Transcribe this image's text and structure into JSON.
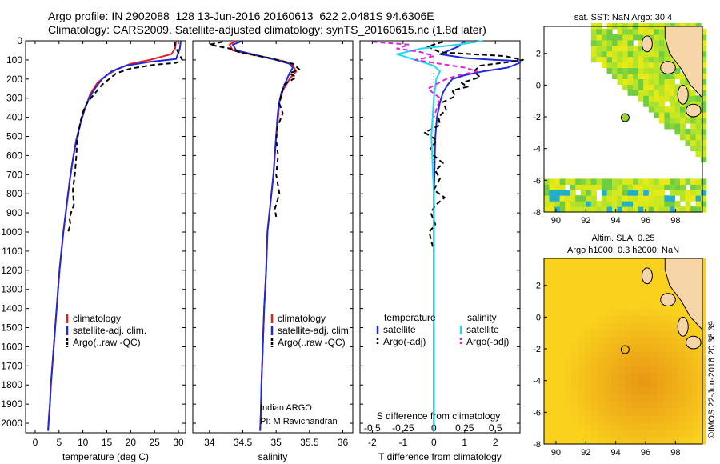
{
  "header": {
    "line1": "Argo profile: IN 2902088_128 13-Jun-2016 20160613_622 2.0481S 94.6306E",
    "line2": "Climatology: CARS2009. Satellite-adjusted climatology: synTS_20160615.nc (1.8d later)"
  },
  "footer": {
    "credit": "©IMOS 22-Jun-2016 20:38:39"
  },
  "colors": {
    "climatology": "#e8201c",
    "satellite": "#1f2ad8",
    "argo": "#000000",
    "sat_diff": "#22d8f0",
    "argo_s_diff": "#e020e0"
  },
  "chart_data": [
    {
      "type": "line",
      "name": "temperature",
      "xlabel": "temperature (deg C)",
      "ylabel": "",
      "xlim": [
        -2,
        31.5
      ],
      "ylim": [
        2050,
        0
      ],
      "xticks": [
        "0",
        "5",
        "10",
        "15",
        "20",
        "25",
        "30"
      ],
      "xtick_values": [
        0,
        5,
        10,
        15,
        20,
        25,
        30
      ],
      "yticks": [
        "0",
        "100",
        "200",
        "300",
        "400",
        "500",
        "600",
        "700",
        "800",
        "900",
        "1000",
        "1100",
        "1200",
        "1300",
        "1400",
        "1500",
        "1600",
        "1700",
        "1800",
        "1900",
        "2000"
      ],
      "ytick_values": [
        0,
        100,
        200,
        300,
        400,
        500,
        600,
        700,
        800,
        900,
        1000,
        1100,
        1200,
        1300,
        1400,
        1500,
        1600,
        1700,
        1800,
        1900,
        2000
      ],
      "legend": [
        "climatology",
        "satellite-adj. clim.",
        "Argo(..raw -QC)"
      ],
      "series": [
        {
          "name": "climatology",
          "x": [
            29.5,
            29.3,
            28.5,
            24,
            20,
            17,
            15,
            13,
            11.5,
            10.5,
            9.5,
            8.6,
            7.9,
            7.3,
            6.8,
            6.3,
            5.9,
            5.5,
            5.1,
            4.8,
            4.5,
            4.2,
            3.9,
            3.6,
            3.3,
            3.1,
            2.9,
            2.8,
            2.7
          ],
          "y": [
            0,
            40,
            70,
            100,
            120,
            150,
            180,
            220,
            280,
            350,
            430,
            520,
            620,
            720,
            820,
            920,
            1000,
            1100,
            1200,
            1300,
            1400,
            1500,
            1600,
            1700,
            1800,
            1900,
            1960,
            2000,
            2040
          ]
        },
        {
          "name": "satellite-adj. clim.",
          "x": [
            30.5,
            30.3,
            29.5,
            24,
            19,
            16,
            14,
            12.5,
            11.3,
            10.3,
            9.5,
            8.6,
            7.9,
            7.3,
            6.8,
            6.3,
            5.9,
            5.5,
            5.1,
            4.8,
            4.5,
            4.2,
            3.9,
            3.6,
            3.3,
            3.1,
            2.9,
            2.8,
            2.7
          ],
          "y": [
            0,
            40,
            95,
            110,
            130,
            160,
            200,
            250,
            300,
            360,
            430,
            520,
            620,
            720,
            820,
            920,
            1000,
            1100,
            1200,
            1300,
            1400,
            1500,
            1600,
            1700,
            1800,
            1900,
            1960,
            2000,
            2040
          ]
        },
        {
          "name": "Argo(..raw -QC)",
          "x": [
            29.2,
            29.3,
            30.8,
            29.5,
            25,
            20,
            17,
            15.5,
            14,
            13,
            12,
            11,
            10.2,
            9.5,
            8.8,
            8.6,
            8.3,
            7.9,
            8.1,
            7.5,
            7.2,
            7.4,
            6.9
          ],
          "y": [
            5,
            30,
            100,
            115,
            125,
            145,
            170,
            200,
            230,
            260,
            290,
            320,
            360,
            420,
            520,
            610,
            700,
            780,
            860,
            900,
            930,
            960,
            1000
          ]
        }
      ]
    },
    {
      "type": "line",
      "name": "salinity",
      "xlabel": "salinity",
      "ylabel": "",
      "xlim": [
        33.75,
        36.15
      ],
      "ylim": [
        2050,
        0
      ],
      "xticks": [
        "34",
        "34.5",
        "35",
        "35.5",
        "36"
      ],
      "xtick_values": [
        34,
        34.5,
        35,
        35.5,
        36
      ],
      "legend": [
        "climatology",
        "satellite-adj. clim.",
        "Argo(..raw -QC)"
      ],
      "annotation": [
        "Indian ARGO",
        "PI: M Ravichandran"
      ],
      "series": [
        {
          "name": "climatology",
          "x": [
            34.4,
            34.3,
            34.35,
            34.6,
            34.9,
            35.15,
            35.25,
            35.3,
            35.2,
            35.1,
            35.05,
            35.03,
            35.0,
            34.98,
            34.96,
            34.93,
            34.9,
            34.87,
            34.85,
            34.82,
            34.8,
            34.78,
            34.77,
            34.76
          ],
          "y": [
            0,
            20,
            50,
            70,
            90,
            110,
            130,
            160,
            200,
            260,
            320,
            400,
            500,
            600,
            700,
            800,
            900,
            1000,
            1200,
            1400,
            1600,
            1800,
            1950,
            2040
          ]
        },
        {
          "name": "satellite-adj. clim.",
          "x": [
            34.5,
            34.35,
            34.4,
            34.7,
            35.0,
            35.2,
            35.25,
            35.2,
            35.15,
            35.08,
            35.04,
            35.02,
            35.0,
            34.98,
            34.96,
            34.93,
            34.9,
            34.87,
            34.85,
            34.82,
            34.8,
            34.78,
            34.77,
            34.76
          ],
          "y": [
            0,
            20,
            50,
            75,
            100,
            120,
            140,
            170,
            210,
            270,
            330,
            400,
            500,
            600,
            700,
            800,
            900,
            1000,
            1200,
            1400,
            1600,
            1800,
            1950,
            2040
          ]
        },
        {
          "name": "Argo(..raw -QC)",
          "x": [
            34.2,
            34.0,
            34.3,
            34.45,
            34.9,
            35.25,
            35.35,
            35.2,
            35.3,
            35.12,
            35.08,
            35.05,
            35.1,
            35.02,
            35.0,
            35.03,
            35.0,
            35.05,
            34.98,
            35.0
          ],
          "y": [
            5,
            20,
            40,
            60,
            90,
            120,
            150,
            170,
            190,
            230,
            280,
            330,
            380,
            450,
            520,
            600,
            700,
            800,
            880,
            920
          ]
        }
      ]
    },
    {
      "type": "line",
      "name": "differences",
      "xlabel": "T difference from climatology",
      "xlabel_top": "S difference from climatology",
      "xlim": [
        -2.4,
        2.8
      ],
      "ylim": [
        2050,
        0
      ],
      "xticks": [
        "-2",
        "-1",
        "0",
        "1",
        "2"
      ],
      "xtick_values": [
        -2,
        -1,
        0,
        1,
        2
      ],
      "xticks_s": [
        "-0.5",
        "-0.25",
        "0",
        "0.25",
        "0.5"
      ],
      "xtick_s_values": [
        -0.5,
        -0.25,
        0,
        0.25,
        0.5
      ],
      "s_scale": 4,
      "legend": [
        "temperature",
        "satellite",
        "Argo(-adj)",
        "salinity",
        "satellite",
        "Argo(-adj)"
      ],
      "series": [
        {
          "name": "T satellite",
          "x": [
            1.0,
            0.8,
            0.5,
            0.2,
            1.0,
            2.0,
            2.7,
            2.8,
            2.4,
            1.6,
            1.0,
            0.6,
            0.45,
            0.3,
            0.2,
            0.1,
            0.05,
            0.03,
            0.02,
            0.0,
            0.0,
            0.0,
            0.0,
            0.0
          ],
          "y": [
            0,
            30,
            50,
            70,
            90,
            100,
            105,
            115,
            140,
            160,
            180,
            200,
            230,
            270,
            320,
            400,
            500,
            600,
            700,
            800,
            1000,
            1400,
            1800,
            2040
          ]
        },
        {
          "name": "T Argo(-adj)",
          "x": [
            0.3,
            -0.2,
            0.2,
            2.3,
            2.9,
            2.5,
            1.5,
            1.3,
            1.5,
            0.9,
            1.1,
            0.6,
            0.7,
            0.3,
            0.4,
            0.15,
            0.2,
            -0.3,
            0.1,
            -0.1,
            0.0,
            0.3,
            0.05,
            0.2,
            0.0,
            0.35,
            0.05,
            -0.1,
            0.05,
            -0.15,
            0.0
          ],
          "y": [
            5,
            30,
            60,
            80,
            100,
            110,
            130,
            160,
            190,
            220,
            240,
            260,
            290,
            320,
            360,
            400,
            440,
            480,
            520,
            560,
            600,
            640,
            680,
            720,
            780,
            820,
            860,
            900,
            960,
            1000,
            1100
          ]
        },
        {
          "name": "S satellite",
          "x": [
            0.4,
            0.2,
            -0.1,
            -0.3,
            -0.15,
            0.0,
            0.05,
            0.02,
            0.0,
            -0.02,
            0.0,
            0.0,
            0.0,
            0.0
          ],
          "y": [
            0,
            20,
            40,
            70,
            100,
            130,
            160,
            200,
            300,
            500,
            800,
            1200,
            1600,
            2040
          ]
        },
        {
          "name": "S Argo(-adj)",
          "x": [
            -0.5,
            -0.2,
            -0.3,
            -0.1,
            0.0,
            -0.15,
            0.05,
            0.25,
            0.35,
            0.2,
            0.1,
            -0.05,
            0.05,
            0.0
          ],
          "y": [
            5,
            20,
            40,
            60,
            80,
            100,
            120,
            140,
            160,
            180,
            200,
            250,
            300,
            400
          ]
        }
      ]
    },
    {
      "type": "heatmap",
      "name": "sst-map",
      "title": "sat. SST: NaN Argo: 30.4",
      "xlim": [
        89.2,
        99.8
      ],
      "ylim": [
        -8,
        3.7
      ],
      "xticks": [
        "90",
        "92",
        "94",
        "96",
        "98"
      ],
      "xtick_values": [
        90,
        92,
        94,
        96,
        98
      ],
      "yticks": [
        "-8",
        "-6",
        "-4",
        "-2",
        "0",
        "2"
      ],
      "ytick_values": [
        -8,
        -6,
        -4,
        -2,
        0,
        2
      ],
      "marker": {
        "lon": 94.63,
        "lat": -2.05,
        "value": 30.4
      }
    },
    {
      "type": "heatmap",
      "name": "sla-map",
      "title": "Altim. SLA: 0.25",
      "subtitle": "Argo h1000: 0.3 h2000: NaN",
      "xlim": [
        89.2,
        99.8
      ],
      "ylim": [
        -8,
        3.7
      ],
      "xticks": [
        "90",
        "92",
        "94",
        "96",
        "98"
      ],
      "xtick_values": [
        90,
        92,
        94,
        96,
        98
      ],
      "yticks": [
        "-8",
        "-6",
        "-4",
        "-2",
        "0",
        "2"
      ],
      "ytick_values": [
        -8,
        -6,
        -4,
        -2,
        0,
        2
      ],
      "marker": {
        "lon": 94.63,
        "lat": -2.05
      }
    }
  ]
}
